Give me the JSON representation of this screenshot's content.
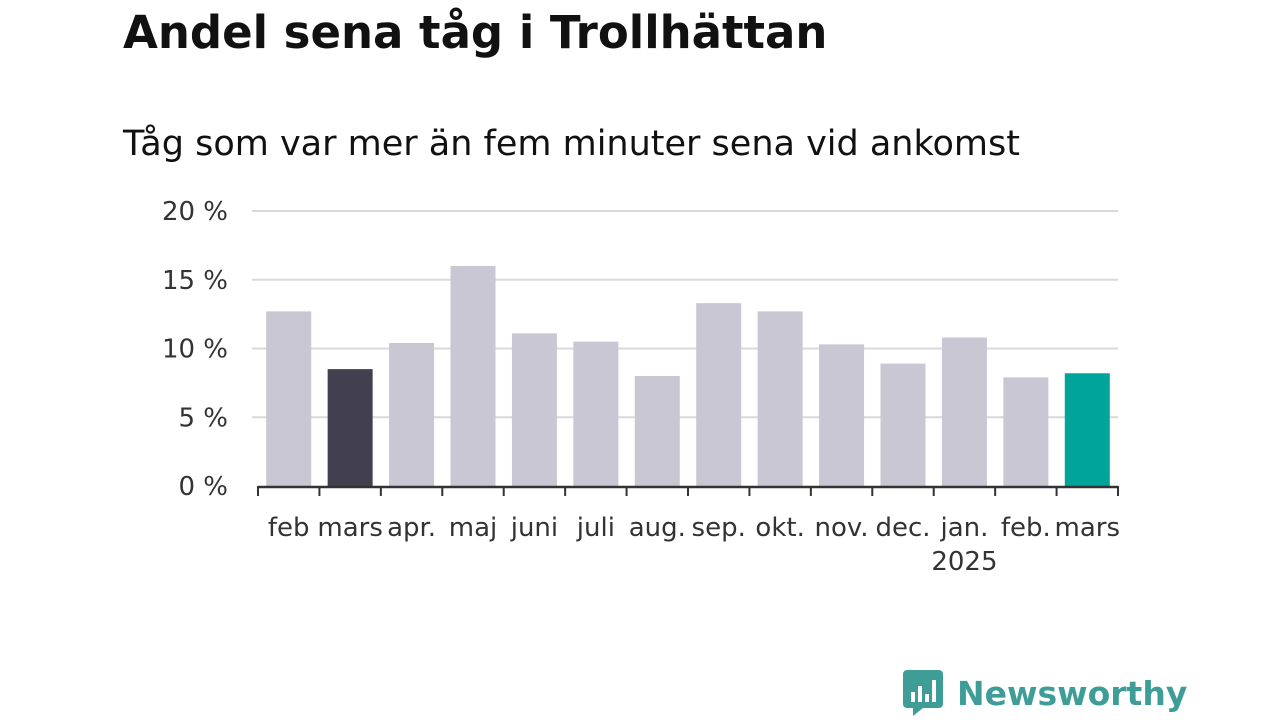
{
  "header": {
    "title": "Andel sena tåg i Trollhättan",
    "subtitle": "Tåg som var mer än fem minuter sena vid ankomst"
  },
  "brand": {
    "name": "Newsworthy",
    "icon": "bar-chart-speech-bubble-icon",
    "color": "#3e9e97"
  },
  "colors": {
    "default_bar": "#c8c7d3",
    "highlight_previous": "#42404e",
    "highlight_current": "#00a499",
    "gridline": "#d9d9d9",
    "axis": "#333333"
  },
  "chart_data": {
    "type": "bar",
    "categories": [
      "feb",
      "mars",
      "apr.",
      "maj",
      "juni",
      "juli",
      "aug.",
      "sep.",
      "okt.",
      "nov.",
      "dec.",
      "jan.",
      "feb.",
      "mars"
    ],
    "category_sublabels": [
      "",
      "",
      "",
      "",
      "",
      "",
      "",
      "",
      "",
      "",
      "",
      "2025",
      "",
      ""
    ],
    "values": [
      12.7,
      8.5,
      10.4,
      16.0,
      11.1,
      10.5,
      8.0,
      13.3,
      12.7,
      10.3,
      8.9,
      10.8,
      7.9,
      8.2
    ],
    "highlight": [
      "default",
      "previous",
      "default",
      "default",
      "default",
      "default",
      "default",
      "default",
      "default",
      "default",
      "default",
      "default",
      "default",
      "current"
    ],
    "title": "Andel sena tåg i Trollhättan",
    "subtitle": "Tåg som var mer än fem minuter sena vid ankomst",
    "xlabel": "",
    "ylabel": "",
    "ylim": [
      0,
      20
    ],
    "yticks": [
      0,
      5,
      10,
      15,
      20
    ],
    "ytick_labels": [
      "0 %",
      "5 %",
      "10 %",
      "15 %",
      "20 %"
    ],
    "grid": true,
    "legend": "none"
  }
}
